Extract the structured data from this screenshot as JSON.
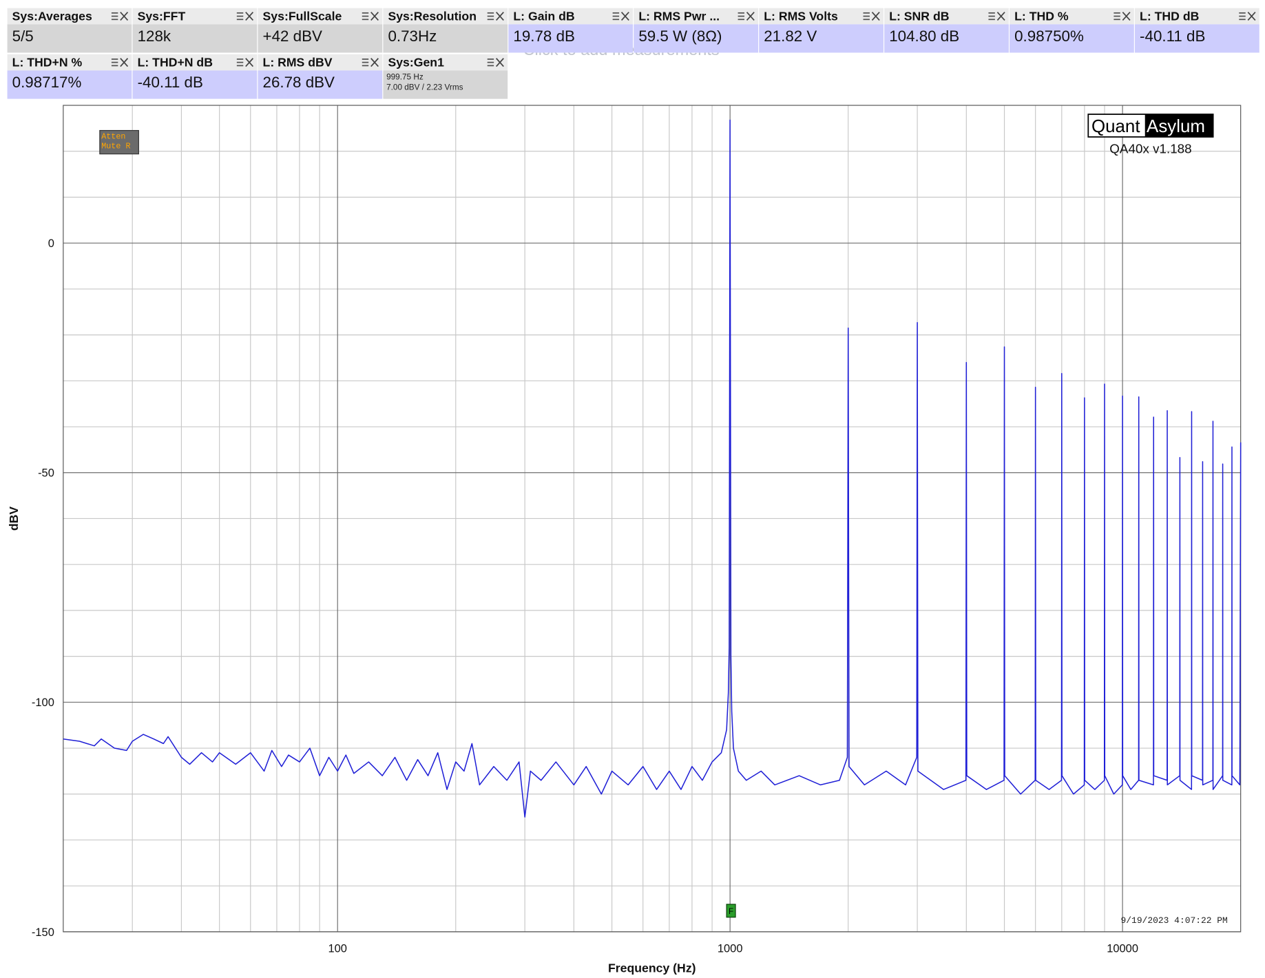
{
  "measurements": [
    {
      "label": "Sys:Averages",
      "value": "5/5",
      "kind": "sys"
    },
    {
      "label": "Sys:FFT",
      "value": "128k",
      "kind": "sys"
    },
    {
      "label": "Sys:FullScale",
      "value": "+42 dBV",
      "kind": "sys"
    },
    {
      "label": "Sys:Resolution",
      "value": "0.73Hz",
      "kind": "sys"
    },
    {
      "label": "L: Gain dB",
      "value": "19.78 dB",
      "kind": "meas"
    },
    {
      "label": "L: RMS Pwr ...",
      "value": "59.5 W (8Ω)",
      "kind": "meas"
    },
    {
      "label": "L: RMS Volts",
      "value": "21.82 V",
      "kind": "meas"
    },
    {
      "label": "L: SNR dB",
      "value": "104.80 dB",
      "kind": "meas"
    },
    {
      "label": "L: THD %",
      "value": "0.98750%",
      "kind": "meas"
    },
    {
      "label": "L: THD dB",
      "value": "-40.11 dB",
      "kind": "meas"
    },
    {
      "label": "L: THD+N %",
      "value": "0.98717%",
      "kind": "meas"
    },
    {
      "label": "L: THD+N dB",
      "value": "-40.11 dB",
      "kind": "meas"
    },
    {
      "label": "L: RMS dBV",
      "value": "26.78 dBV",
      "kind": "meas"
    },
    {
      "label": "Sys:Gen1",
      "details": [
        "999.75 Hz",
        "7.00 dBV  / 2.23 Vrms"
      ],
      "kind": "sys"
    }
  ],
  "hint": "Click to add measurements",
  "badge": [
    "Atten",
    "Mute R"
  ],
  "logo": {
    "left": "Quant",
    "right": "Asylum",
    "version": "QA40x v1.188"
  },
  "timestamp": "9/19/2023 4:07:22 PM",
  "marker_label": "F",
  "chart_data": {
    "type": "line",
    "xlabel": "Frequency (Hz)",
    "ylabel": "dBV",
    "log_x": true,
    "grid": true,
    "xlim": [
      20,
      20000
    ],
    "ylim": [
      -150,
      30
    ],
    "xticks": [
      100,
      1000,
      10000
    ],
    "yticks": [
      -150,
      -100,
      -50,
      0
    ],
    "x_minor_ticks": [
      30,
      40,
      50,
      60,
      70,
      80,
      90,
      200,
      300,
      400,
      500,
      600,
      700,
      800,
      900,
      2000,
      3000,
      4000,
      5000,
      6000,
      7000,
      8000,
      9000
    ],
    "y_minor_ticks": [
      -140,
      -130,
      -120,
      -110,
      -90,
      -80,
      -70,
      -60,
      -40,
      -30,
      -20,
      -10,
      10,
      20
    ],
    "series": [
      {
        "color": "#1f1fd6",
        "x": [
          20,
          22,
          24,
          25,
          27,
          29,
          30,
          32,
          34,
          36,
          37,
          40,
          42,
          45,
          48,
          50,
          55,
          60,
          65,
          68,
          72,
          75,
          80,
          85,
          90,
          95,
          100,
          105,
          110,
          120,
          130,
          140,
          150,
          160,
          170,
          180,
          190,
          200,
          210,
          220,
          230,
          250,
          270,
          290,
          300,
          310,
          330,
          360,
          400,
          430,
          470,
          500,
          550,
          600,
          650,
          700,
          750,
          800,
          850,
          900,
          950,
          980,
          990,
          995,
          999.75,
          1005,
          1010,
          1020,
          1050,
          1100,
          1200,
          1300,
          1500,
          1700,
          1900,
          1990,
          2000,
          2010,
          2200,
          2500,
          2800,
          2990,
          3000,
          3010,
          3500,
          3990,
          4000,
          4010,
          4500,
          4990,
          5000,
          5010,
          5500,
          5990,
          6000,
          6010,
          6500,
          6990,
          7000,
          7010,
          7500,
          7990,
          8000,
          8010,
          8500,
          8990,
          9000,
          9010,
          9500,
          9990,
          10000,
          10010,
          10500,
          10990,
          11000,
          11010,
          11990,
          12000,
          12010,
          12990,
          13000,
          13010,
          13990,
          14000,
          14010,
          14990,
          15000,
          15010,
          15990,
          16000,
          16010,
          16990,
          17000,
          17010,
          17990,
          18000,
          18010,
          18990,
          19000,
          19010,
          19900,
          20000
        ],
        "values": [
          -108,
          -108.5,
          -109.5,
          -108,
          -110,
          -110.5,
          -108.5,
          -107,
          -108,
          -109,
          -107.5,
          -112,
          -113.5,
          -111,
          -113,
          -111,
          -113.5,
          -111,
          -115,
          -110.5,
          -114,
          -111.5,
          -113,
          -110,
          -116,
          -112,
          -115,
          -111.5,
          -115.5,
          -113,
          -116,
          -112,
          -117,
          -112.5,
          -116,
          -111,
          -119,
          -113,
          -115,
          -109,
          -118,
          -114,
          -117,
          -113,
          -125,
          -115,
          -117,
          -113,
          -118,
          -114,
          -120,
          -115,
          -118,
          -114,
          -119,
          -115,
          -119,
          -114,
          -117,
          -113,
          -111,
          -106,
          -98,
          -88,
          26.8,
          -90,
          -102,
          -110,
          -115,
          -117,
          -115,
          -118,
          -116,
          -118,
          -117,
          -112,
          -18.5,
          -114,
          -118,
          -115,
          -118,
          -112,
          -17.3,
          -115,
          -119,
          -117,
          -26,
          -116,
          -119,
          -117,
          -22.6,
          -116,
          -120,
          -117,
          -31.4,
          -117,
          -119,
          -117,
          -28.4,
          -116,
          -120,
          -118,
          -33.7,
          -117,
          -119,
          -117,
          -30.7,
          -116,
          -120,
          -118,
          -33.3,
          -116,
          -119,
          -117,
          -33.5,
          -117,
          -118,
          -37.9,
          -116,
          -117,
          -36.5,
          -118,
          -116,
          -46.7,
          -117,
          -119,
          -36.7,
          -116,
          -117,
          -47.6,
          -118,
          -117,
          -38.8,
          -119,
          -116,
          -48.1,
          -117,
          -118,
          -44.4,
          -116,
          -118,
          -43.4
        ]
      }
    ]
  }
}
